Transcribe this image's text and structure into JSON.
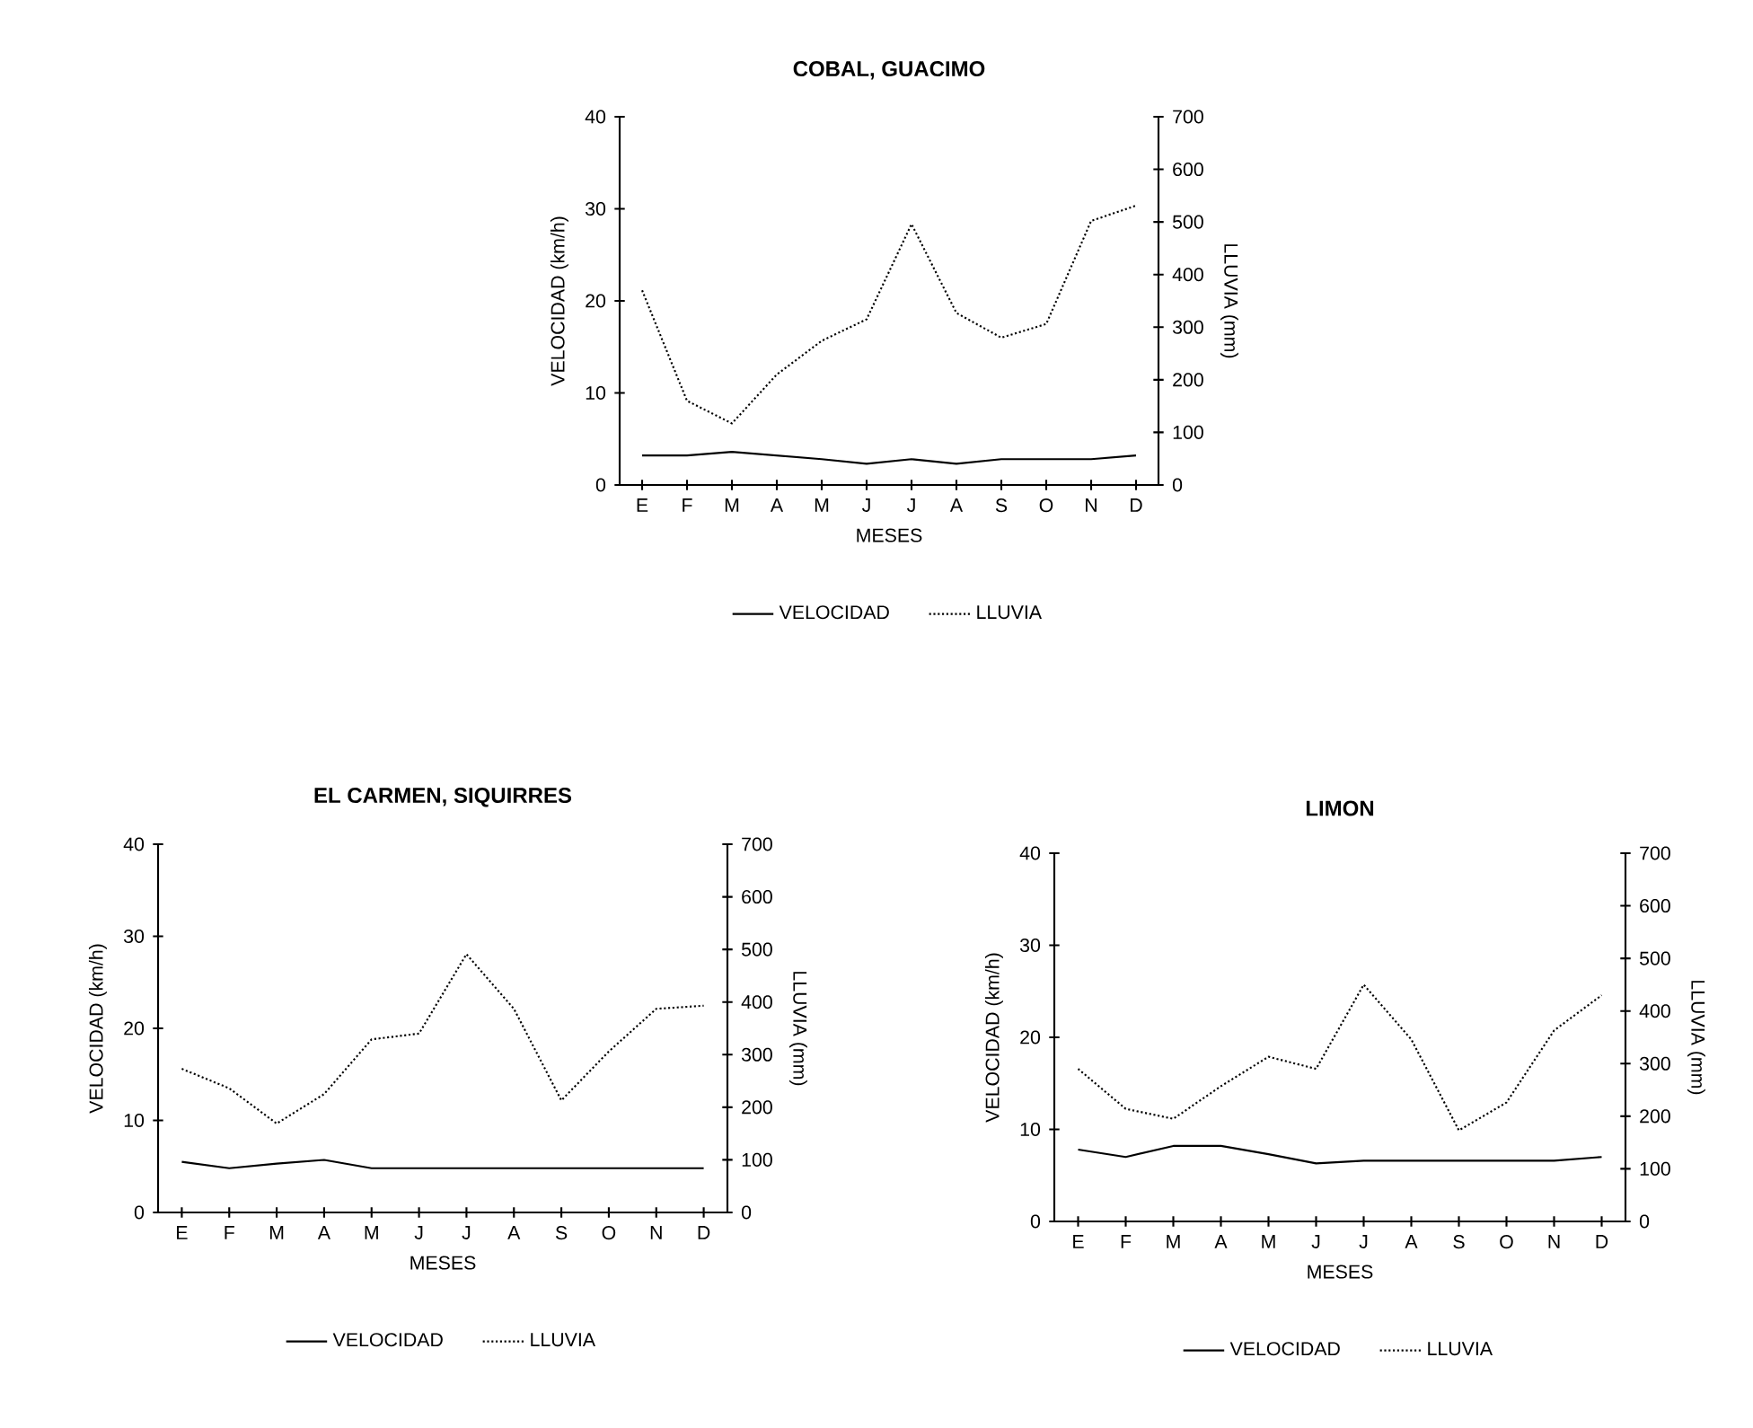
{
  "chart_data": [
    {
      "type": "line",
      "title": "COBAL, GUACIMO",
      "xlabel": "MESES",
      "ylabel": "VELOCIDAD (km/h)",
      "y2label": "LLUVIA  (mm)",
      "categories": [
        "E",
        "F",
        "M",
        "A",
        "M",
        "J",
        "J",
        "A",
        "S",
        "O",
        "N",
        "D"
      ],
      "ylim": [
        0,
        40
      ],
      "yticks": [
        0,
        10,
        20,
        30,
        40
      ],
      "y2lim": [
        0,
        700
      ],
      "y2ticks": [
        0,
        100,
        200,
        300,
        400,
        500,
        600,
        700
      ],
      "legend": "bottom",
      "series": [
        {
          "name": "VELOCIDAD",
          "color": "#000000",
          "line_style": "solid",
          "values": [
            3.2,
            3.2,
            3.6,
            3.2,
            2.8,
            2.3,
            2.8,
            2.3,
            2.8,
            2.8,
            2.8,
            3.2
          ]
        },
        {
          "name": "LLUVIA",
          "color": "#000000",
          "line_style": "dotted",
          "axis": "y2",
          "values": [
            370,
            160,
            117,
            210,
            274,
            315,
            496,
            327,
            280,
            306,
            502,
            531
          ]
        }
      ]
    },
    {
      "type": "line",
      "title": "EL CARMEN, SIQUIRRES",
      "xlabel": "MESES",
      "ylabel": "VELOCIDAD (km/h)",
      "y2label": "LLUVIA (mm)",
      "categories": [
        "E",
        "F",
        "M",
        "A",
        "M",
        "J",
        "J",
        "A",
        "S",
        "O",
        "N",
        "D"
      ],
      "ylim": [
        0,
        40
      ],
      "yticks": [
        0,
        10,
        20,
        30,
        40
      ],
      "y2lim": [
        0,
        700
      ],
      "y2ticks": [
        0,
        100,
        200,
        300,
        400,
        500,
        600,
        700
      ],
      "legend": "bottom",
      "series": [
        {
          "name": "VELOCIDAD",
          "color": "#000000",
          "line_style": "solid",
          "values": [
            5.5,
            4.8,
            5.3,
            5.7,
            4.8,
            4.8,
            4.8,
            4.8,
            4.8,
            4.8,
            4.8,
            4.8
          ]
        },
        {
          "name": "LLUVIA",
          "color": "#000000",
          "line_style": "dotted",
          "axis": "y2",
          "values": [
            273,
            236,
            169,
            225,
            329,
            340,
            491,
            387,
            213,
            306,
            387,
            393
          ]
        }
      ]
    },
    {
      "type": "line",
      "title": "LIMON",
      "xlabel": "MESES",
      "ylabel": "VELOCIDAD (km/h)",
      "y2label": "LLUVIA (mm)",
      "categories": [
        "E",
        "F",
        "M",
        "A",
        "M",
        "J",
        "J",
        "A",
        "S",
        "O",
        "N",
        "D"
      ],
      "ylim": [
        0,
        40
      ],
      "yticks": [
        0,
        10,
        20,
        30,
        40
      ],
      "y2lim": [
        0,
        700
      ],
      "y2ticks": [
        0,
        100,
        200,
        300,
        400,
        500,
        600,
        700
      ],
      "legend": "bottom",
      "series": [
        {
          "name": "VELOCIDAD",
          "color": "#000000",
          "line_style": "solid",
          "values": [
            7.8,
            7.0,
            8.2,
            8.2,
            7.3,
            6.3,
            6.6,
            6.6,
            6.6,
            6.6,
            6.6,
            7.0
          ]
        },
        {
          "name": "LLUVIA",
          "color": "#000000",
          "line_style": "dotted",
          "axis": "y2",
          "values": [
            290,
            214,
            195,
            257,
            313,
            290,
            450,
            346,
            173,
            226,
            363,
            430
          ]
        }
      ]
    }
  ]
}
